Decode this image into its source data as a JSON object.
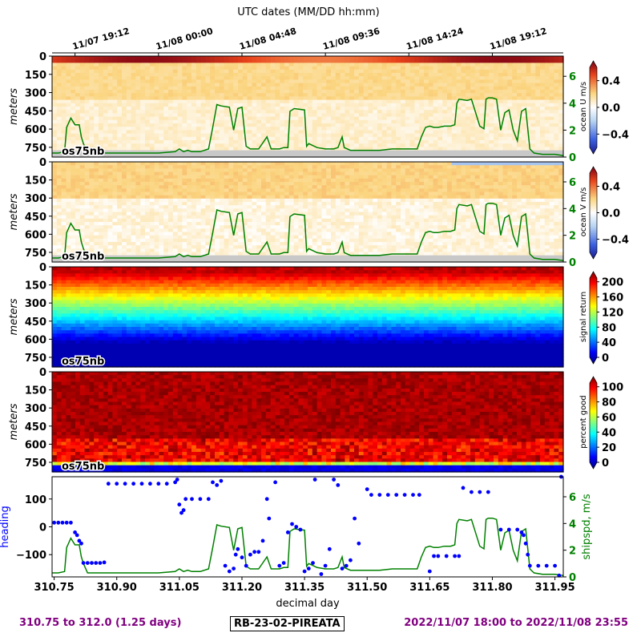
{
  "top_title": "UTC dates (MM/DD hh:mm)",
  "date_ticks": [
    {
      "label": "11/07 19:12",
      "day": 310.8
    },
    {
      "label": "11/08 00:00",
      "day": 311.0
    },
    {
      "label": "11/08 04:48",
      "day": 311.2
    },
    {
      "label": "11/08 09:36",
      "day": 311.4
    },
    {
      "label": "11/08 14:24",
      "day": 311.6
    },
    {
      "label": "11/08 19:12",
      "day": 311.8
    }
  ],
  "xlabel": "decimal day",
  "footer": {
    "left": "310.75 to 312.0 (1.25 days)",
    "middle": "RB-23-02-PIREATA",
    "right": "2022/11/07 18:00 to 2022/11/08 23:55"
  },
  "colors": {
    "heading": "#0000ff",
    "shipspd": "#008000",
    "footer": "#800080",
    "no_data": "#c8c8c8"
  },
  "chart_data": [
    {
      "type": "heatmap",
      "ylabel": "meters",
      "colorbar_label": "ocean U m/s",
      "colorbar_ticks": [
        "0.4",
        "0.0",
        "−0.4"
      ],
      "colormap": "diverging blue-white-red",
      "clim": [
        -0.6,
        0.6
      ],
      "inset_label": "os75nb",
      "y_ticks": [
        "0",
        "150",
        "300",
        "450",
        "600",
        "750"
      ],
      "right_axis_ticks": [
        "0",
        "2",
        "4",
        "6"
      ],
      "description_values": {
        "surface_max": 0.6,
        "subsurface_typical": 0.15,
        "deep_typical": 0.05
      }
    },
    {
      "type": "heatmap",
      "ylabel": "meters",
      "colorbar_label": "ocean V m/s",
      "colorbar_ticks": [
        "0.4",
        "0.0",
        "−0.4"
      ],
      "colormap": "diverging blue-white-red",
      "clim": [
        -0.6,
        0.6
      ],
      "inset_label": "os75nb",
      "y_ticks": [
        "0",
        "150",
        "300",
        "450",
        "600",
        "750"
      ],
      "right_axis_ticks": [
        "0",
        "2",
        "4",
        "6"
      ],
      "description_values": {
        "upper_typical": 0.15,
        "deep_typical": 0.02,
        "late_surface_min": -0.25
      }
    },
    {
      "type": "heatmap",
      "ylabel": "meters",
      "colorbar_label": "signal return",
      "colorbar_ticks": [
        "200",
        "160",
        "120",
        "80",
        "40",
        "0"
      ],
      "colormap": "jet",
      "clim": [
        0,
        210
      ],
      "inset_label": "os75nb",
      "y_ticks": [
        "0",
        "150",
        "300",
        "450",
        "600",
        "750"
      ]
    },
    {
      "type": "heatmap",
      "ylabel": "meters",
      "colorbar_label": "percent good",
      "colorbar_ticks": [
        "100",
        "80",
        "60",
        "40",
        "20",
        "0"
      ],
      "colormap": "jet",
      "clim": [
        0,
        105
      ],
      "inset_label": "os75nb",
      "y_ticks": [
        "0",
        "150",
        "300",
        "450",
        "600",
        "750"
      ]
    },
    {
      "type": "scatter",
      "ylabel": "heading",
      "ylabel_right": "shipspd, m/s",
      "y_ticks": [
        "100",
        "0",
        "−100"
      ],
      "right_axis_ticks": [
        "0",
        "2",
        "4",
        "6"
      ],
      "x_ticks": [
        "310.75",
        "310.90",
        "311.05",
        "311.20",
        "311.35",
        "311.50",
        "311.65",
        "311.80",
        "311.95"
      ],
      "xlim": [
        310.745,
        311.97
      ],
      "ylim_heading": [
        -180,
        180
      ],
      "ylim_speed": [
        0,
        7.5
      ],
      "heading": [
        [
          310.75,
          15
        ],
        [
          310.76,
          15
        ],
        [
          310.77,
          15
        ],
        [
          310.78,
          15
        ],
        [
          310.79,
          15
        ],
        [
          310.8,
          -20
        ],
        [
          310.805,
          -30
        ],
        [
          310.81,
          -50
        ],
        [
          310.815,
          -60
        ],
        [
          310.82,
          -130
        ],
        [
          310.83,
          -130
        ],
        [
          310.84,
          -130
        ],
        [
          310.85,
          -130
        ],
        [
          310.86,
          -130
        ],
        [
          310.87,
          -128
        ],
        [
          310.88,
          155
        ],
        [
          310.9,
          155
        ],
        [
          310.92,
          155
        ],
        [
          310.94,
          155
        ],
        [
          310.96,
          155
        ],
        [
          310.98,
          155
        ],
        [
          311.0,
          155
        ],
        [
          311.02,
          155
        ],
        [
          311.04,
          160
        ],
        [
          311.045,
          170
        ],
        [
          311.05,
          80
        ],
        [
          311.055,
          50
        ],
        [
          311.06,
          60
        ],
        [
          311.065,
          100
        ],
        [
          311.08,
          100
        ],
        [
          311.1,
          100
        ],
        [
          311.12,
          100
        ],
        [
          311.13,
          160
        ],
        [
          311.14,
          150
        ],
        [
          311.15,
          165
        ],
        [
          311.16,
          -140
        ],
        [
          311.17,
          -160
        ],
        [
          311.18,
          -150
        ],
        [
          311.185,
          -100
        ],
        [
          311.19,
          -80
        ],
        [
          311.2,
          -110
        ],
        [
          311.21,
          -140
        ],
        [
          311.22,
          -100
        ],
        [
          311.23,
          -90
        ],
        [
          311.24,
          -90
        ],
        [
          311.25,
          -50
        ],
        [
          311.26,
          100
        ],
        [
          311.265,
          30
        ],
        [
          311.28,
          160
        ],
        [
          311.29,
          -140
        ],
        [
          311.3,
          -130
        ],
        [
          311.31,
          -20
        ],
        [
          311.32,
          10
        ],
        [
          311.33,
          0
        ],
        [
          311.34,
          -10
        ],
        [
          311.35,
          -160
        ],
        [
          311.36,
          -150
        ],
        [
          311.37,
          -130
        ],
        [
          311.375,
          170
        ],
        [
          311.39,
          -170
        ],
        [
          311.4,
          -140
        ],
        [
          311.41,
          -80
        ],
        [
          311.42,
          170
        ],
        [
          311.43,
          150
        ],
        [
          311.44,
          -150
        ],
        [
          311.45,
          -140
        ],
        [
          311.46,
          -120
        ],
        [
          311.47,
          30
        ],
        [
          311.48,
          -60
        ],
        [
          311.5,
          135
        ],
        [
          311.51,
          115
        ],
        [
          311.53,
          115
        ],
        [
          311.55,
          115
        ],
        [
          311.57,
          115
        ],
        [
          311.59,
          115
        ],
        [
          311.61,
          115
        ],
        [
          311.625,
          115
        ],
        [
          311.65,
          -160
        ],
        [
          311.66,
          -105
        ],
        [
          311.67,
          -105
        ],
        [
          311.69,
          -105
        ],
        [
          311.71,
          -105
        ],
        [
          311.72,
          -105
        ],
        [
          311.73,
          140
        ],
        [
          311.75,
          125
        ],
        [
          311.77,
          125
        ],
        [
          311.79,
          125
        ],
        [
          311.82,
          -10
        ],
        [
          311.84,
          -10
        ],
        [
          311.86,
          -10
        ],
        [
          311.87,
          -20
        ],
        [
          311.875,
          -30
        ],
        [
          311.88,
          -60
        ],
        [
          311.885,
          -100
        ],
        [
          311.89,
          -140
        ],
        [
          311.91,
          -140
        ],
        [
          311.93,
          -140
        ],
        [
          311.95,
          -140
        ],
        [
          311.96,
          -175
        ],
        [
          311.965,
          180
        ]
      ],
      "shipspd": [
        [
          310.745,
          0.3
        ],
        [
          310.76,
          0.3
        ],
        [
          310.775,
          0.4
        ],
        [
          310.78,
          2.2
        ],
        [
          310.79,
          2.9
        ],
        [
          310.8,
          2.4
        ],
        [
          310.81,
          2.4
        ],
        [
          310.815,
          1.5
        ],
        [
          310.82,
          1.0
        ],
        [
          310.83,
          0.3
        ],
        [
          310.86,
          0.3
        ],
        [
          310.9,
          0.3
        ],
        [
          310.95,
          0.3
        ],
        [
          311.0,
          0.3
        ],
        [
          311.04,
          0.4
        ],
        [
          311.05,
          0.6
        ],
        [
          311.06,
          0.4
        ],
        [
          311.07,
          0.5
        ],
        [
          311.08,
          0.4
        ],
        [
          311.1,
          0.4
        ],
        [
          311.12,
          0.6
        ],
        [
          311.13,
          2.2
        ],
        [
          311.14,
          3.9
        ],
        [
          311.15,
          3.8
        ],
        [
          311.17,
          3.7
        ],
        [
          311.18,
          2.0
        ],
        [
          311.19,
          3.6
        ],
        [
          311.2,
          3.7
        ],
        [
          311.21,
          0.8
        ],
        [
          311.22,
          0.6
        ],
        [
          311.24,
          0.6
        ],
        [
          311.26,
          1.5
        ],
        [
          311.27,
          0.6
        ],
        [
          311.29,
          0.6
        ],
        [
          311.3,
          0.7
        ],
        [
          311.31,
          0.7
        ],
        [
          311.315,
          3.4
        ],
        [
          311.325,
          3.6
        ],
        [
          311.35,
          3.5
        ],
        [
          311.355,
          0.8
        ],
        [
          311.36,
          1.0
        ],
        [
          311.38,
          0.7
        ],
        [
          311.4,
          0.6
        ],
        [
          311.42,
          0.6
        ],
        [
          311.43,
          0.7
        ],
        [
          311.44,
          1.5
        ],
        [
          311.445,
          0.7
        ],
        [
          311.46,
          0.5
        ],
        [
          311.48,
          0.5
        ],
        [
          311.5,
          0.5
        ],
        [
          311.53,
          0.5
        ],
        [
          311.56,
          0.6
        ],
        [
          311.58,
          0.6
        ],
        [
          311.6,
          0.6
        ],
        [
          311.62,
          0.6
        ],
        [
          311.63,
          1.5
        ],
        [
          311.64,
          2.2
        ],
        [
          311.65,
          2.3
        ],
        [
          311.66,
          2.2
        ],
        [
          311.67,
          2.2
        ],
        [
          311.685,
          2.3
        ],
        [
          311.7,
          2.3
        ],
        [
          311.71,
          2.4
        ],
        [
          311.715,
          4.0
        ],
        [
          311.72,
          4.3
        ],
        [
          311.74,
          4.2
        ],
        [
          311.75,
          4.3
        ],
        [
          311.77,
          2.3
        ],
        [
          311.78,
          2.1
        ],
        [
          311.785,
          4.3
        ],
        [
          311.79,
          4.4
        ],
        [
          311.8,
          4.4
        ],
        [
          311.81,
          4.3
        ],
        [
          311.82,
          2.0
        ],
        [
          311.83,
          3.3
        ],
        [
          311.84,
          3.5
        ],
        [
          311.85,
          2.0
        ],
        [
          311.86,
          1.2
        ],
        [
          311.87,
          3.4
        ],
        [
          311.88,
          3.6
        ],
        [
          311.89,
          0.6
        ],
        [
          311.9,
          0.3
        ],
        [
          311.92,
          0.2
        ],
        [
          311.95,
          0.2
        ],
        [
          311.97,
          0.1
        ]
      ]
    }
  ]
}
